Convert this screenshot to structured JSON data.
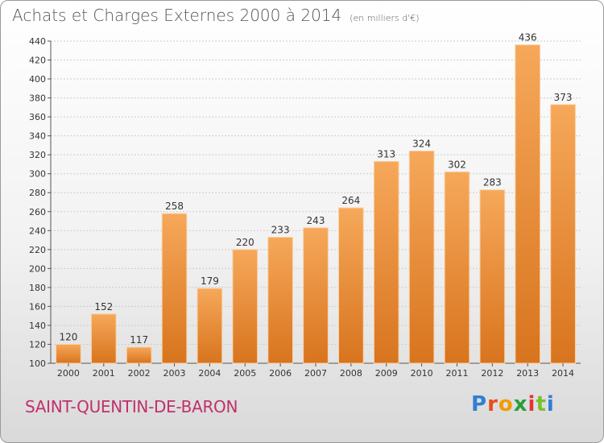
{
  "header": {
    "title": "Achats et Charges Externes 2000 à 2014",
    "unit": "(en milliers d'€)"
  },
  "commune": "SAINT-QUENTIN-DE-BARON",
  "logo": {
    "letters": [
      "P",
      "r",
      "o",
      "x",
      "i",
      "t",
      "i"
    ]
  },
  "colors": {
    "bar_top": "#f6a85a",
    "bar_bottom": "#d8741e",
    "commune": "#c0306c"
  },
  "chart_data": {
    "type": "bar",
    "title": "Achats et Charges Externes 2000 à 2014",
    "categories": [
      "2000",
      "2001",
      "2002",
      "2003",
      "2004",
      "2005",
      "2006",
      "2007",
      "2008",
      "2009",
      "2010",
      "2011",
      "2012",
      "2013",
      "2014"
    ],
    "values": [
      120,
      152,
      117,
      258,
      179,
      220,
      233,
      243,
      264,
      313,
      324,
      302,
      283,
      436,
      373
    ],
    "ylim": [
      100,
      440
    ],
    "yticks": [
      100,
      120,
      140,
      160,
      180,
      200,
      220,
      240,
      260,
      280,
      300,
      320,
      340,
      360,
      380,
      400,
      420,
      440
    ],
    "grid": true,
    "data_labels": true
  }
}
